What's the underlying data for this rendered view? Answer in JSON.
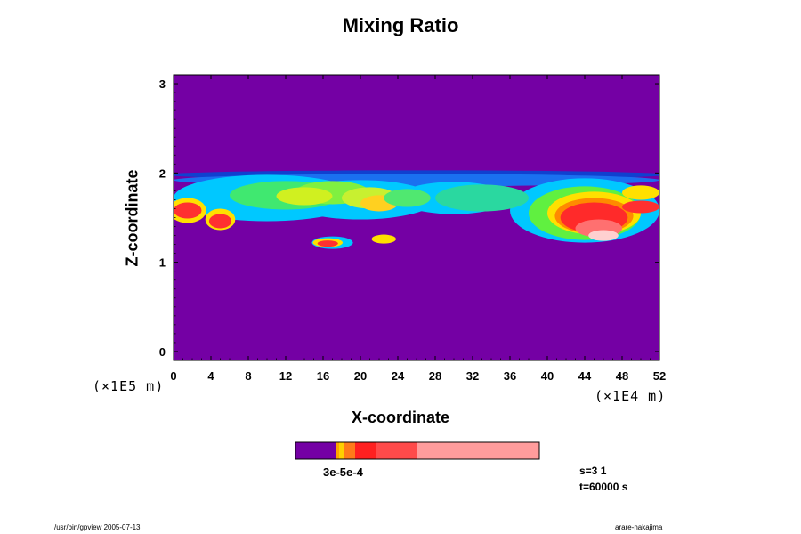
{
  "chart_data": {
    "type": "heatmap",
    "title": "Mixing Ratio",
    "xlabel": "X-coordinate",
    "ylabel": "Z-coordinate",
    "x_scale_note": "(×1E4 m)",
    "y_scale_note": "(×1E5 m)",
    "xlim": [
      0,
      52
    ],
    "ylim": [
      -0.1,
      3.1
    ],
    "x_ticks": [
      "0",
      "4",
      "8",
      "12",
      "16",
      "20",
      "24",
      "28",
      "32",
      "36",
      "40",
      "44",
      "48",
      "52"
    ],
    "y_ticks": [
      "0",
      "1",
      "2",
      "3"
    ],
    "background_color": "#7400a4",
    "colorbar": {
      "label": "3e-5e-4",
      "levels": [
        "#7400a4",
        "#ffa500",
        "#ffd000",
        "#ff7a1a",
        "#ff2020",
        "#ff4a4a",
        "#ff9c9c"
      ]
    },
    "blobs": [
      {
        "x": 26,
        "z": 1.98,
        "rx": 27,
        "rz": 0.05,
        "c": "#1040d0"
      },
      {
        "x": 26,
        "z": 1.92,
        "rx": 26,
        "rz": 0.07,
        "c": "#1a70f0"
      },
      {
        "x": 10,
        "z": 1.72,
        "rx": 10,
        "rz": 0.26,
        "c": "#00c8ff"
      },
      {
        "x": 20,
        "z": 1.7,
        "rx": 8,
        "rz": 0.22,
        "c": "#00c8ff"
      },
      {
        "x": 30,
        "z": 1.72,
        "rx": 6,
        "rz": 0.18,
        "c": "#00c8ff"
      },
      {
        "x": 44,
        "z": 1.58,
        "rx": 8,
        "rz": 0.36,
        "c": "#00c8ff"
      },
      {
        "x": 33,
        "z": 1.72,
        "rx": 5,
        "rz": 0.15,
        "c": "#2ad8a0"
      },
      {
        "x": 12,
        "z": 1.75,
        "rx": 6,
        "rz": 0.16,
        "c": "#40e870"
      },
      {
        "x": 17,
        "z": 1.78,
        "rx": 4,
        "rz": 0.13,
        "c": "#80f040"
      },
      {
        "x": 14,
        "z": 1.74,
        "rx": 3,
        "rz": 0.1,
        "c": "#d0f020"
      },
      {
        "x": 21,
        "z": 1.72,
        "rx": 3,
        "rz": 0.12,
        "c": "#c8f030"
      },
      {
        "x": 22,
        "z": 1.66,
        "rx": 2,
        "rz": 0.09,
        "c": "#ffd020"
      },
      {
        "x": 25,
        "z": 1.72,
        "rx": 2.5,
        "rz": 0.1,
        "c": "#50e870"
      },
      {
        "x": 44,
        "z": 1.55,
        "rx": 6,
        "rz": 0.3,
        "c": "#60f040"
      },
      {
        "x": 45,
        "z": 1.55,
        "rx": 5,
        "rz": 0.24,
        "c": "#ffe000"
      },
      {
        "x": 45,
        "z": 1.52,
        "rx": 4.2,
        "rz": 0.2,
        "c": "#ff8a00"
      },
      {
        "x": 45,
        "z": 1.5,
        "rx": 3.6,
        "rz": 0.17,
        "c": "#ff2a2a"
      },
      {
        "x": 45.5,
        "z": 1.38,
        "rx": 2.5,
        "rz": 0.1,
        "c": "#ff7070"
      },
      {
        "x": 46,
        "z": 1.3,
        "rx": 1.6,
        "rz": 0.06,
        "c": "#ffd0d0"
      },
      {
        "x": 50,
        "z": 1.78,
        "rx": 2,
        "rz": 0.08,
        "c": "#ffe000"
      },
      {
        "x": 50,
        "z": 1.62,
        "rx": 2,
        "rz": 0.07,
        "c": "#ff3030"
      },
      {
        "x": 1.5,
        "z": 1.58,
        "rx": 2,
        "rz": 0.14,
        "c": "#ffe000"
      },
      {
        "x": 1.5,
        "z": 1.58,
        "rx": 1.5,
        "rz": 0.09,
        "c": "#ff3030"
      },
      {
        "x": 5,
        "z": 1.48,
        "rx": 1.6,
        "rz": 0.12,
        "c": "#ffe000"
      },
      {
        "x": 5,
        "z": 1.46,
        "rx": 1.2,
        "rz": 0.08,
        "c": "#ff3030"
      },
      {
        "x": 17,
        "z": 1.22,
        "rx": 2.2,
        "rz": 0.07,
        "c": "#00c8ff"
      },
      {
        "x": 16.5,
        "z": 1.22,
        "rx": 1.6,
        "rz": 0.05,
        "c": "#ffe000"
      },
      {
        "x": 16.5,
        "z": 1.21,
        "rx": 1.1,
        "rz": 0.035,
        "c": "#ff3030"
      },
      {
        "x": 22.5,
        "z": 1.26,
        "rx": 1.3,
        "rz": 0.05,
        "c": "#ffe000"
      }
    ]
  },
  "colorbar_title": "3e-5e-4",
  "info": {
    "s_line": "s=3 1",
    "t_line": "t=60000 s"
  },
  "footer": {
    "left": "/usr/bin/gpview 2005-07-13",
    "right": "arare-nakajima"
  }
}
